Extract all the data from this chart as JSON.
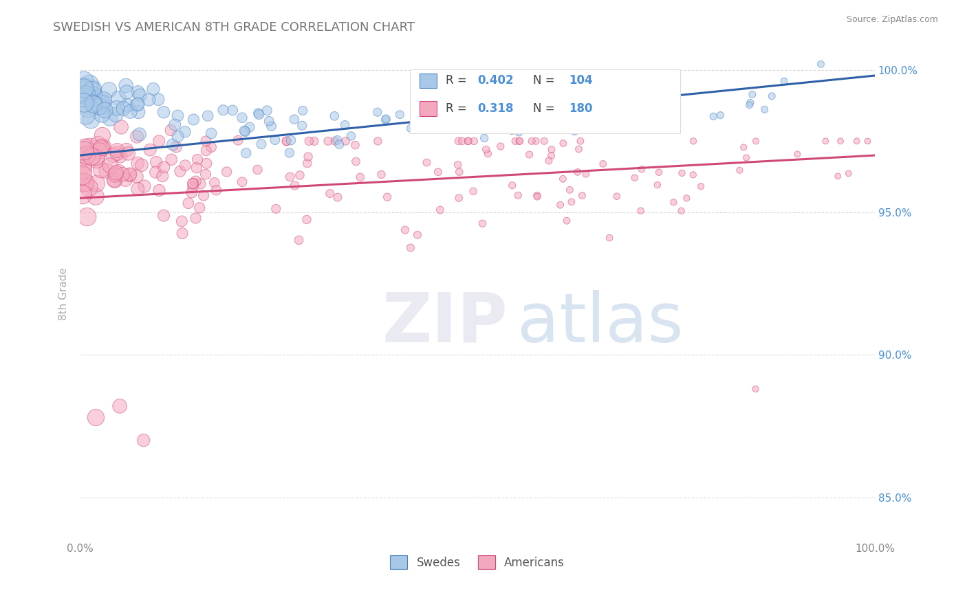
{
  "title": "SWEDISH VS AMERICAN 8TH GRADE CORRELATION CHART",
  "source": "Source: ZipAtlas.com",
  "ylabel": "8th Grade",
  "xlim": [
    0.0,
    1.0
  ],
  "ylim": [
    0.835,
    1.008
  ],
  "yticks": [
    0.85,
    0.9,
    0.95,
    1.0
  ],
  "ytick_labels": [
    "85.0%",
    "90.0%",
    "95.0%",
    "100.0%"
  ],
  "swedes_color": "#a8c8e8",
  "americans_color": "#f4a8be",
  "swedes_edge_color": "#4a80c0",
  "americans_edge_color": "#d04878",
  "swedes_line_color": "#3060a8",
  "americans_line_color": "#d04878",
  "swedes_R": 0.402,
  "swedes_N": 104,
  "americans_R": 0.318,
  "americans_N": 180,
  "legend_label_swedes": "Swedes",
  "legend_label_americans": "Americans",
  "background_color": "#ffffff",
  "grid_color": "#cccccc",
  "title_color": "#777777",
  "right_tick_color": "#4a90d9",
  "blue_trend_start_y": 0.97,
  "blue_trend_end_y": 0.998,
  "pink_trend_start_y": 0.955,
  "pink_trend_end_y": 0.97
}
